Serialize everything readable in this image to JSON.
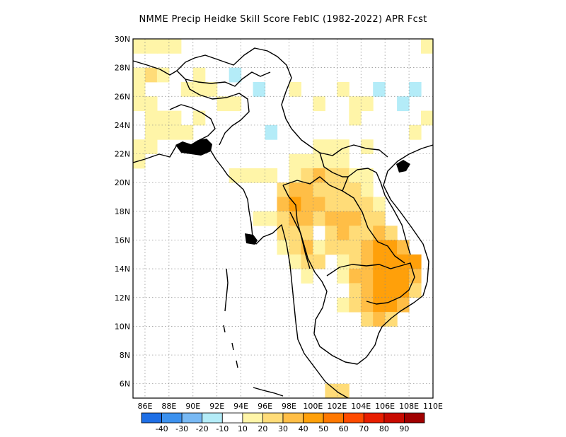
{
  "title": "NMME Precip Heidke Skill Score FebIC (1982-2022) APR Fcst",
  "x_ticks": [
    "86E",
    "88E",
    "90E",
    "92E",
    "94E",
    "96E",
    "98E",
    "100E",
    "102E",
    "104E",
    "106E",
    "108E",
    "110E"
  ],
  "y_ticks": [
    "30N",
    "28N",
    "26N",
    "24N",
    "22N",
    "20N",
    "18N",
    "16N",
    "14N",
    "12N",
    "10N",
    "8N",
    "6N"
  ],
  "colorbar": {
    "labels": [
      "-40",
      "-30",
      "-20",
      "-10",
      "10",
      "20",
      "30",
      "40",
      "50",
      "60",
      "70",
      "80",
      "90"
    ],
    "colors": [
      "#1e6fe6",
      "#3c91ee",
      "#78b9f4",
      "#b4ecf8",
      "#ffffff",
      "#fff5a8",
      "#ffdc78",
      "#ffbe46",
      "#ffa00a",
      "#ff7800",
      "#ff4b00",
      "#e81e00",
      "#c80a00",
      "#a00000"
    ]
  },
  "chart_data": {
    "type": "heatmap",
    "title": "NMME Precip Heidke Skill Score FebIC (1982-2022) APR Fcst",
    "lon_range": [
      85,
      110
    ],
    "lat_range": [
      5,
      30
    ],
    "grid": "dotted",
    "cells_note": "approximate skill score values per ~1x1 degree cell (lon, lat, value)",
    "cells": [
      [
        85,
        29,
        12
      ],
      [
        86,
        29,
        15
      ],
      [
        87,
        29,
        12
      ],
      [
        88,
        29,
        10
      ],
      [
        109,
        29,
        15
      ],
      [
        85,
        27,
        18
      ],
      [
        86,
        27,
        22
      ],
      [
        87,
        27,
        15
      ],
      [
        90,
        27,
        12
      ],
      [
        93,
        27,
        -12
      ],
      [
        85,
        26,
        15
      ],
      [
        89,
        26,
        12
      ],
      [
        90,
        26,
        15
      ],
      [
        91,
        26,
        10
      ],
      [
        95,
        26,
        -15
      ],
      [
        98,
        26,
        12
      ],
      [
        102,
        26,
        12
      ],
      [
        105,
        26,
        -15
      ],
      [
        108,
        26,
        -12
      ],
      [
        85,
        25,
        12
      ],
      [
        86,
        25,
        12
      ],
      [
        92,
        25,
        12
      ],
      [
        93,
        25,
        15
      ],
      [
        100,
        25,
        12
      ],
      [
        103,
        25,
        12
      ],
      [
        104,
        25,
        12
      ],
      [
        107,
        25,
        -15
      ],
      [
        86,
        24,
        12
      ],
      [
        87,
        24,
        15
      ],
      [
        88,
        24,
        12
      ],
      [
        90,
        24,
        10
      ],
      [
        103,
        24,
        12
      ],
      [
        109,
        24,
        12
      ],
      [
        86,
        23,
        12
      ],
      [
        87,
        23,
        12
      ],
      [
        88,
        23,
        18
      ],
      [
        89,
        23,
        12
      ],
      [
        96,
        23,
        -12
      ],
      [
        108,
        23,
        12
      ],
      [
        85,
        22,
        15
      ],
      [
        86,
        22,
        12
      ],
      [
        100,
        22,
        12
      ],
      [
        101,
        22,
        12
      ],
      [
        102,
        22,
        12
      ],
      [
        104,
        22,
        12
      ],
      [
        85,
        21,
        15
      ],
      [
        98,
        21,
        12
      ],
      [
        99,
        21,
        15
      ],
      [
        100,
        21,
        18
      ],
      [
        101,
        21,
        15
      ],
      [
        102,
        21,
        12
      ],
      [
        93,
        20,
        12
      ],
      [
        94,
        20,
        12
      ],
      [
        95,
        20,
        12
      ],
      [
        96,
        20,
        12
      ],
      [
        98,
        20,
        15
      ],
      [
        99,
        20,
        25
      ],
      [
        100,
        20,
        30
      ],
      [
        101,
        20,
        25
      ],
      [
        102,
        20,
        20
      ],
      [
        103,
        20,
        15
      ],
      [
        104,
        20,
        12
      ],
      [
        97,
        19,
        25
      ],
      [
        98,
        19,
        35
      ],
      [
        99,
        19,
        30
      ],
      [
        100,
        19,
        25
      ],
      [
        101,
        19,
        20
      ],
      [
        102,
        19,
        20
      ],
      [
        103,
        19,
        25
      ],
      [
        104,
        19,
        15
      ],
      [
        97,
        18,
        30
      ],
      [
        98,
        18,
        42
      ],
      [
        99,
        18,
        35
      ],
      [
        100,
        18,
        30
      ],
      [
        101,
        18,
        28
      ],
      [
        102,
        18,
        25
      ],
      [
        103,
        18,
        20
      ],
      [
        104,
        18,
        25
      ],
      [
        105,
        18,
        15
      ],
      [
        95,
        17,
        12
      ],
      [
        96,
        17,
        15
      ],
      [
        97,
        17,
        20
      ],
      [
        98,
        17,
        30
      ],
      [
        99,
        17,
        35
      ],
      [
        100,
        17,
        28
      ],
      [
        101,
        17,
        30
      ],
      [
        102,
        17,
        35
      ],
      [
        103,
        17,
        30
      ],
      [
        104,
        17,
        25
      ],
      [
        105,
        17,
        20
      ],
      [
        97,
        16,
        20
      ],
      [
        98,
        16,
        25
      ],
      [
        99,
        16,
        20
      ],
      [
        101,
        16,
        25
      ],
      [
        102,
        16,
        30
      ],
      [
        103,
        16,
        25
      ],
      [
        104,
        16,
        20
      ],
      [
        105,
        16,
        30
      ],
      [
        106,
        16,
        25
      ],
      [
        97,
        15,
        15
      ],
      [
        98,
        15,
        20
      ],
      [
        99,
        15,
        30
      ],
      [
        100,
        15,
        15
      ],
      [
        101,
        15,
        25
      ],
      [
        102,
        15,
        20
      ],
      [
        103,
        15,
        20
      ],
      [
        104,
        15,
        30
      ],
      [
        105,
        15,
        40
      ],
      [
        106,
        15,
        45
      ],
      [
        107,
        15,
        35
      ],
      [
        98,
        14,
        15
      ],
      [
        99,
        14,
        25
      ],
      [
        100,
        14,
        20
      ],
      [
        102,
        14,
        12
      ],
      [
        103,
        14,
        20
      ],
      [
        104,
        14,
        35
      ],
      [
        105,
        14,
        40
      ],
      [
        106,
        14,
        45
      ],
      [
        107,
        14,
        45
      ],
      [
        108,
        14,
        40
      ],
      [
        99,
        13,
        15
      ],
      [
        102,
        13,
        15
      ],
      [
        103,
        13,
        30
      ],
      [
        104,
        13,
        35
      ],
      [
        105,
        13,
        40
      ],
      [
        106,
        13,
        45
      ],
      [
        107,
        13,
        40
      ],
      [
        108,
        13,
        35
      ],
      [
        103,
        12,
        25
      ],
      [
        104,
        12,
        35
      ],
      [
        105,
        12,
        45
      ],
      [
        106,
        12,
        48
      ],
      [
        107,
        12,
        42
      ],
      [
        108,
        12,
        25
      ],
      [
        102,
        11,
        12
      ],
      [
        103,
        11,
        20
      ],
      [
        104,
        11,
        30
      ],
      [
        105,
        11,
        42
      ],
      [
        106,
        11,
        40
      ],
      [
        107,
        11,
        30
      ],
      [
        104,
        10,
        20
      ],
      [
        105,
        10,
        35
      ],
      [
        106,
        10,
        25
      ],
      [
        101,
        5,
        25
      ],
      [
        102,
        5,
        20
      ]
    ]
  }
}
